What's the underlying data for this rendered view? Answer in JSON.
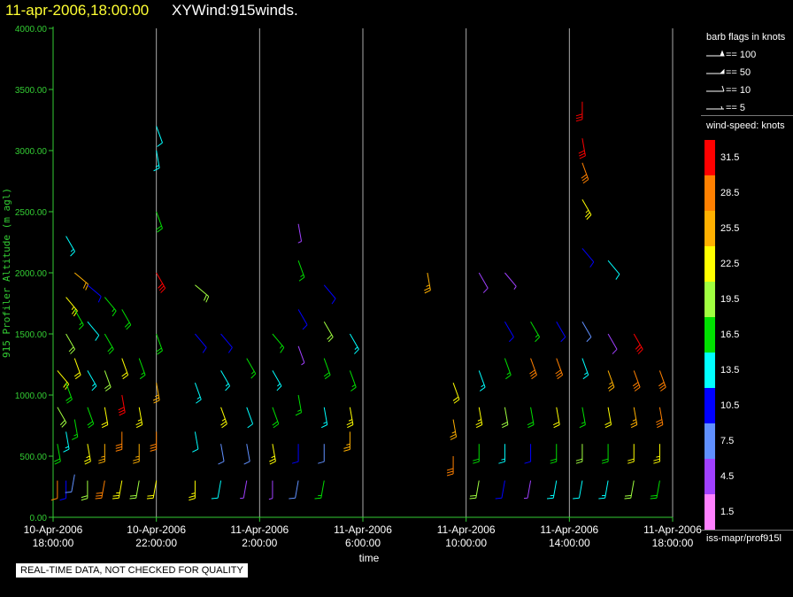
{
  "title": {
    "date": "11-apr-2006,18:00:00",
    "main": "XYWind:915winds."
  },
  "disclaimer": "REAL-TIME DATA, NOT CHECKED FOR QUALITY",
  "legend": {
    "barb_title": "barb flags in knots",
    "barbs": [
      {
        "knots": 100,
        "label": "== 100"
      },
      {
        "knots": 50,
        "label": "== 50"
      },
      {
        "knots": 10,
        "label": "== 10"
      },
      {
        "knots": 5,
        "label": "== 5"
      }
    ],
    "speed_title": "wind-speed: knots",
    "speed_bins": [
      {
        "label": "31.5",
        "color": "#ff0000"
      },
      {
        "label": "28.5",
        "color": "#ff8000"
      },
      {
        "label": "25.5",
        "color": "#ffb000"
      },
      {
        "label": "22.5",
        "color": "#ffff00"
      },
      {
        "label": "19.5",
        "color": "#a0ff40"
      },
      {
        "label": "16.5",
        "color": "#00e000"
      },
      {
        "label": "13.5",
        "color": "#00ffff"
      },
      {
        "label": "10.5",
        "color": "#0000ff"
      },
      {
        "label": "7.5",
        "color": "#6090ff"
      },
      {
        "label": "4.5",
        "color": "#a040ff"
      },
      {
        "label": "1.5",
        "color": "#ff80ff"
      }
    ],
    "source": "iss-mapr/prof915l"
  },
  "chart_data": {
    "type": "scatter",
    "xlabel": "time",
    "ylabel": "915 Profiler Altitude (m agl)",
    "x_range": [
      "2006-04-10T18:00",
      "2006-04-11T18:00"
    ],
    "ylim": [
      0,
      4000
    ],
    "y_ticks": [
      "0.00",
      "500.00",
      "1000.00",
      "1500.00",
      "2000.00",
      "2500.00",
      "3000.00",
      "3500.00",
      "4000.00"
    ],
    "x_ticks": [
      {
        "date": "10-Apr-2006",
        "time": "18:00:00"
      },
      {
        "date": "10-Apr-2006",
        "time": "22:00:00"
      },
      {
        "date": "11-Apr-2006",
        "time": "2:00:00"
      },
      {
        "date": "11-Apr-2006",
        "time": "6:00:00"
      },
      {
        "date": "11-Apr-2006",
        "time": "10:00:00"
      },
      {
        "date": "11-Apr-2006",
        "time": "14:00:00"
      },
      {
        "date": "11-Apr-2006",
        "time": "18:00:00"
      }
    ],
    "grid": "vertical",
    "colors": {
      "axis": "#33cc33",
      "grid": "#aaaaaa"
    },
    "profiles": [
      {
        "time": "2006-04-10T18:10",
        "levels": [
          [
            300,
            1800,
            12,
            "#ff8000"
          ],
          [
            600,
            1700,
            18,
            "#00e000"
          ],
          [
            900,
            1500,
            20,
            "#a0ff40"
          ],
          [
            1200,
            1400,
            22,
            "#ffff00"
          ]
        ]
      },
      {
        "time": "2006-04-10T18:30",
        "levels": [
          [
            300,
            1800,
            10,
            "#0000ff"
          ],
          [
            700,
            1700,
            14,
            "#00ffff"
          ],
          [
            1100,
            1600,
            18,
            "#00e000"
          ],
          [
            1500,
            1500,
            20,
            "#a0ff40"
          ],
          [
            1800,
            1400,
            24,
            "#ffff00"
          ],
          [
            2300,
            1500,
            14,
            "#00ffff"
          ]
        ]
      },
      {
        "time": "2006-04-10T18:50",
        "levels": [
          [
            350,
            1900,
            8,
            "#6090ff"
          ],
          [
            800,
            1700,
            16,
            "#00e000"
          ],
          [
            1300,
            1600,
            22,
            "#ffff00"
          ],
          [
            1700,
            1500,
            16,
            "#00e000"
          ],
          [
            2000,
            1300,
            20,
            "#ffb000"
          ]
        ]
      },
      {
        "time": "2006-04-10T19:20",
        "levels": [
          [
            300,
            1800,
            20,
            "#a0ff40"
          ],
          [
            600,
            1700,
            24,
            "#ffff00"
          ],
          [
            900,
            1600,
            18,
            "#00e000"
          ],
          [
            1200,
            1500,
            14,
            "#00ffff"
          ],
          [
            1600,
            1400,
            12,
            "#00ffff"
          ],
          [
            1900,
            1300,
            10,
            "#0000ff"
          ]
        ]
      },
      {
        "time": "2006-04-10T20:00",
        "levels": [
          [
            300,
            1900,
            28,
            "#ff8000"
          ],
          [
            600,
            1800,
            26,
            "#ffb000"
          ],
          [
            900,
            1700,
            22,
            "#ffff00"
          ],
          [
            1200,
            1600,
            20,
            "#a0ff40"
          ],
          [
            1500,
            1500,
            18,
            "#00e000"
          ],
          [
            1800,
            1400,
            16,
            "#00e000"
          ]
        ]
      },
      {
        "time": "2006-04-10T20:40",
        "levels": [
          [
            300,
            1900,
            24,
            "#ffff00"
          ],
          [
            700,
            1800,
            28,
            "#ff8000"
          ],
          [
            1000,
            1700,
            31,
            "#ff0000"
          ],
          [
            1300,
            1600,
            22,
            "#ffff00"
          ],
          [
            1700,
            1500,
            18,
            "#00e000"
          ]
        ]
      },
      {
        "time": "2006-04-10T21:20",
        "levels": [
          [
            300,
            1900,
            20,
            "#a0ff40"
          ],
          [
            600,
            1800,
            26,
            "#ffb000"
          ],
          [
            900,
            1700,
            24,
            "#ffff00"
          ],
          [
            1300,
            1600,
            16,
            "#00e000"
          ]
        ]
      },
      {
        "time": "2006-04-10T22:00",
        "levels": [
          [
            300,
            1900,
            22,
            "#ffff00"
          ],
          [
            700,
            1800,
            28,
            "#ff8000"
          ],
          [
            1100,
            1700,
            26,
            "#ffb000"
          ],
          [
            1500,
            1600,
            18,
            "#00e000"
          ],
          [
            2000,
            1500,
            31,
            "#ff0000"
          ],
          [
            2500,
            1600,
            18,
            "#00e000"
          ],
          [
            3000,
            1700,
            14,
            "#00ffff"
          ],
          [
            3200,
            1600,
            12,
            "#00ffff"
          ]
        ]
      },
      {
        "time": "2006-04-10T23:30",
        "levels": [
          [
            300,
            1800,
            24,
            "#ffff00"
          ],
          [
            700,
            1700,
            12,
            "#00ffff"
          ],
          [
            1100,
            1600,
            14,
            "#00ffff"
          ],
          [
            1500,
            1400,
            10,
            "#0000ff"
          ],
          [
            1900,
            1300,
            20,
            "#a0ff40"
          ]
        ]
      },
      {
        "time": "2006-04-11T00:30",
        "levels": [
          [
            300,
            1900,
            12,
            "#00ffff"
          ],
          [
            600,
            1700,
            8,
            "#6090ff"
          ],
          [
            900,
            1600,
            24,
            "#ffff00"
          ],
          [
            1200,
            1500,
            14,
            "#00ffff"
          ],
          [
            1500,
            1400,
            10,
            "#0000ff"
          ]
        ]
      },
      {
        "time": "2006-04-11T01:30",
        "levels": [
          [
            300,
            1900,
            4,
            "#a040ff"
          ],
          [
            600,
            1700,
            8,
            "#6090ff"
          ],
          [
            900,
            1600,
            12,
            "#00ffff"
          ],
          [
            1300,
            1500,
            16,
            "#00e000"
          ]
        ]
      },
      {
        "time": "2006-04-11T02:30",
        "levels": [
          [
            300,
            1800,
            6,
            "#a040ff"
          ],
          [
            600,
            1700,
            24,
            "#ffff00"
          ],
          [
            900,
            1600,
            18,
            "#00e000"
          ],
          [
            1200,
            1500,
            14,
            "#00ffff"
          ],
          [
            1500,
            1400,
            16,
            "#00e000"
          ]
        ]
      },
      {
        "time": "2006-04-11T03:30",
        "levels": [
          [
            300,
            1900,
            8,
            "#6090ff"
          ],
          [
            600,
            1800,
            12,
            "#0000ff"
          ],
          [
            1000,
            1700,
            16,
            "#00e000"
          ],
          [
            1400,
            1600,
            4,
            "#a040ff"
          ],
          [
            1700,
            1500,
            10,
            "#0000ff"
          ],
          [
            2100,
            1600,
            16,
            "#00e000"
          ],
          [
            2400,
            1700,
            6,
            "#a040ff"
          ]
        ]
      },
      {
        "time": "2006-04-11T04:30",
        "levels": [
          [
            300,
            1900,
            16,
            "#00e000"
          ],
          [
            600,
            1800,
            8,
            "#6090ff"
          ],
          [
            900,
            1700,
            14,
            "#00ffff"
          ],
          [
            1300,
            1600,
            18,
            "#00e000"
          ],
          [
            1600,
            1500,
            20,
            "#a0ff40"
          ],
          [
            1900,
            1400,
            12,
            "#0000ff"
          ]
        ]
      },
      {
        "time": "2006-04-11T05:30",
        "levels": [
          [
            700,
            1800,
            26,
            "#ffb000"
          ],
          [
            900,
            1700,
            24,
            "#ffff00"
          ],
          [
            1200,
            1600,
            16,
            "#00e000"
          ],
          [
            1500,
            1500,
            14,
            "#00ffff"
          ]
        ]
      },
      {
        "time": "2006-04-11T08:30",
        "levels": [
          [
            2000,
            1700,
            26,
            "#ffb000"
          ]
        ]
      },
      {
        "time": "2006-04-11T09:30",
        "levels": [
          [
            500,
            1800,
            28,
            "#ff8000"
          ],
          [
            800,
            1700,
            26,
            "#ffb000"
          ],
          [
            1100,
            1600,
            22,
            "#ffff00"
          ]
        ]
      },
      {
        "time": "2006-04-11T10:30",
        "levels": [
          [
            300,
            1900,
            20,
            "#a0ff40"
          ],
          [
            600,
            1800,
            18,
            "#00e000"
          ],
          [
            900,
            1700,
            24,
            "#ffff00"
          ],
          [
            1200,
            1600,
            14,
            "#00ffff"
          ],
          [
            2000,
            1500,
            8,
            "#a040ff"
          ]
        ]
      },
      {
        "time": "2006-04-11T11:30",
        "levels": [
          [
            300,
            1900,
            12,
            "#0000ff"
          ],
          [
            600,
            1800,
            14,
            "#00ffff"
          ],
          [
            900,
            1700,
            20,
            "#a0ff40"
          ],
          [
            1300,
            1600,
            16,
            "#00e000"
          ],
          [
            1600,
            1500,
            10,
            "#0000ff"
          ],
          [
            2000,
            1400,
            6,
            "#a040ff"
          ]
        ]
      },
      {
        "time": "2006-04-11T12:30",
        "levels": [
          [
            300,
            1900,
            6,
            "#a040ff"
          ],
          [
            600,
            1800,
            10,
            "#0000ff"
          ],
          [
            900,
            1700,
            18,
            "#00e000"
          ],
          [
            1300,
            1600,
            28,
            "#ff8000"
          ],
          [
            1600,
            1500,
            16,
            "#00e000"
          ]
        ]
      },
      {
        "time": "2006-04-11T13:30",
        "levels": [
          [
            300,
            1900,
            14,
            "#00ffff"
          ],
          [
            600,
            1800,
            18,
            "#00e000"
          ],
          [
            900,
            1700,
            22,
            "#ffff00"
          ],
          [
            1300,
            1600,
            28,
            "#ff8000"
          ],
          [
            1600,
            1500,
            12,
            "#0000ff"
          ]
        ]
      },
      {
        "time": "2006-04-11T14:30",
        "levels": [
          [
            300,
            1900,
            12,
            "#00ffff"
          ],
          [
            600,
            1800,
            20,
            "#a0ff40"
          ],
          [
            900,
            1700,
            16,
            "#00e000"
          ],
          [
            1300,
            1600,
            14,
            "#00ffff"
          ],
          [
            1600,
            1500,
            8,
            "#6090ff"
          ],
          [
            2200,
            1400,
            10,
            "#0000ff"
          ],
          [
            2600,
            1500,
            24,
            "#ffff00"
          ],
          [
            2900,
            1600,
            30,
            "#ff8000"
          ],
          [
            3100,
            1700,
            32,
            "#ff0000"
          ],
          [
            3400,
            1800,
            32,
            "#ff0000"
          ]
        ]
      },
      {
        "time": "2006-04-11T15:30",
        "levels": [
          [
            300,
            1900,
            14,
            "#00ffff"
          ],
          [
            600,
            1800,
            18,
            "#00e000"
          ],
          [
            900,
            1700,
            22,
            "#ffff00"
          ],
          [
            1200,
            1600,
            26,
            "#ffb000"
          ],
          [
            1500,
            1500,
            8,
            "#a040ff"
          ],
          [
            2100,
            1400,
            12,
            "#00ffff"
          ]
        ]
      },
      {
        "time": "2006-04-11T16:30",
        "levels": [
          [
            300,
            1900,
            20,
            "#a0ff40"
          ],
          [
            600,
            1800,
            22,
            "#ffff00"
          ],
          [
            900,
            1700,
            26,
            "#ffb000"
          ],
          [
            1200,
            1600,
            30,
            "#ff8000"
          ],
          [
            1500,
            1500,
            32,
            "#ff0000"
          ]
        ]
      },
      {
        "time": "2006-04-11T17:30",
        "levels": [
          [
            300,
            1900,
            18,
            "#00e000"
          ],
          [
            600,
            1800,
            24,
            "#ffff00"
          ],
          [
            900,
            1700,
            28,
            "#ff8000"
          ],
          [
            1200,
            1600,
            30,
            "#ff8000"
          ]
        ]
      }
    ]
  }
}
